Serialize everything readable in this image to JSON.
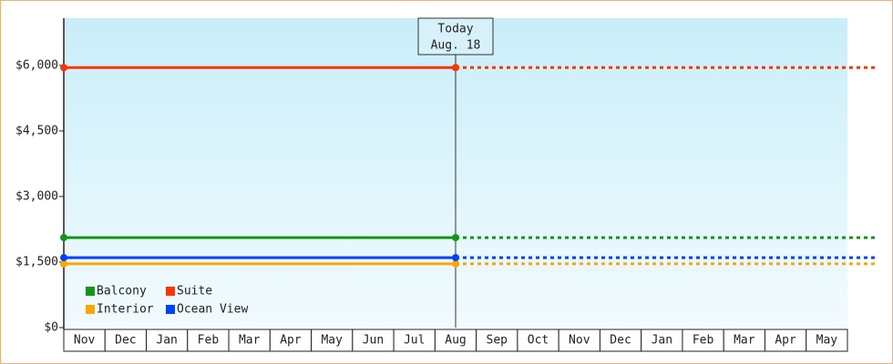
{
  "chart_data": {
    "type": "line",
    "categories": [
      "Nov",
      "Dec",
      "Jan",
      "Feb",
      "Mar",
      "Apr",
      "May",
      "Jun",
      "Jul",
      "Aug",
      "Sep",
      "Oct",
      "Nov",
      "Dec",
      "Jan",
      "Feb",
      "Mar",
      "Apr",
      "May"
    ],
    "series": [
      {
        "name": "Balcony",
        "color": "#149414",
        "value": 2060
      },
      {
        "name": "Suite",
        "color": "#ff3300",
        "value": 5950
      },
      {
        "name": "Interior",
        "color": "#ffa500",
        "value": 1460
      },
      {
        "name": "Ocean View",
        "color": "#0040ff",
        "value": 1600
      }
    ],
    "today": {
      "label": "Today",
      "date": "Aug. 18"
    },
    "ylim": [
      0,
      7080
    ],
    "yticks": [
      {
        "value": 0,
        "label": "$0"
      },
      {
        "value": 1500,
        "label": "$1,500"
      },
      {
        "value": 3000,
        "label": "$3,000"
      },
      {
        "value": 4500,
        "label": "$4,500"
      },
      {
        "value": 6000,
        "label": "$6,000"
      }
    ],
    "legend": "bottom-left"
  }
}
